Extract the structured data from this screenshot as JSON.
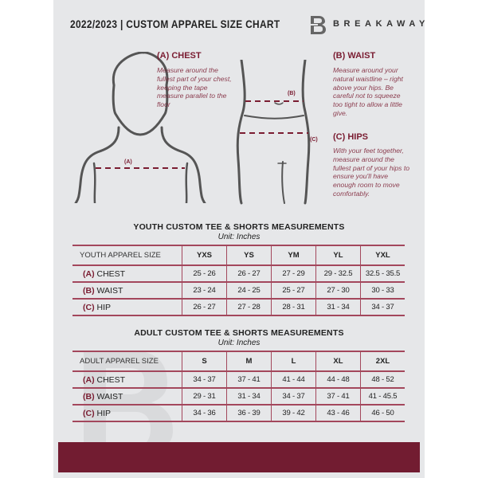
{
  "header": {
    "title": "2022/2023  |  CUSTOM APPAREL SIZE CHART",
    "brand": "BREAKAWAY",
    "logo_letter": "B"
  },
  "measures": {
    "chest": {
      "heading": "(A) CHEST",
      "text": "Measure around the fullest part of your chest, keeping the tape measure parallel to the floor",
      "marker": "(A)"
    },
    "waist": {
      "heading": "(B) WAIST",
      "text": "Measure around your natural waistline – right above your hips. Be careful not to squeeze too tight to allow a little give.",
      "marker": "(B)"
    },
    "hips": {
      "heading": "(C) HIPS",
      "text": "With your feet together, measure around the fullest part of your hips to ensure you'll have enough room to move comfortably.",
      "marker": "(C)"
    }
  },
  "youth": {
    "title": "YOUTH CUSTOM TEE & SHORTS MEASUREMENTS",
    "unit": "Unit: Inches",
    "header": "YOUTH APPAREL SIZE",
    "sizes": [
      "YXS",
      "YS",
      "YM",
      "YL",
      "YXL"
    ],
    "rows": [
      {
        "tag": "(A)",
        "label": "CHEST",
        "values": [
          "25 - 26",
          "26 - 27",
          "27 - 29",
          "29 - 32.5",
          "32.5 - 35.5"
        ]
      },
      {
        "tag": "(B)",
        "label": "WAIST",
        "values": [
          "23 - 24",
          "24 - 25",
          "25 - 27",
          "27 - 30",
          "30 - 33"
        ]
      },
      {
        "tag": "(C)",
        "label": "HIP",
        "values": [
          "26 - 27",
          "27 - 28",
          "28 - 31",
          "31 - 34",
          "34 - 37"
        ]
      }
    ]
  },
  "adult": {
    "title": "ADULT CUSTOM TEE & SHORTS MEASUREMENTS",
    "unit": "Unit: Inches",
    "header": "ADULT APPAREL SIZE",
    "sizes": [
      "S",
      "M",
      "L",
      "XL",
      "2XL"
    ],
    "rows": [
      {
        "tag": "(A)",
        "label": "CHEST",
        "values": [
          "34 - 37",
          "37 - 41",
          "41 - 44",
          "44 - 48",
          "48 - 52"
        ]
      },
      {
        "tag": "(B)",
        "label": "WAIST",
        "values": [
          "29 - 31",
          "31 - 34",
          "34 - 37",
          "37 - 41",
          "41 - 45.5"
        ]
      },
      {
        "tag": "(C)",
        "label": "HIP",
        "values": [
          "34 - 36",
          "36 - 39",
          "39 - 42",
          "43 - 46",
          "46 - 50"
        ]
      }
    ]
  },
  "colors": {
    "accent": "#721c31",
    "background": "#e6e7e9"
  }
}
